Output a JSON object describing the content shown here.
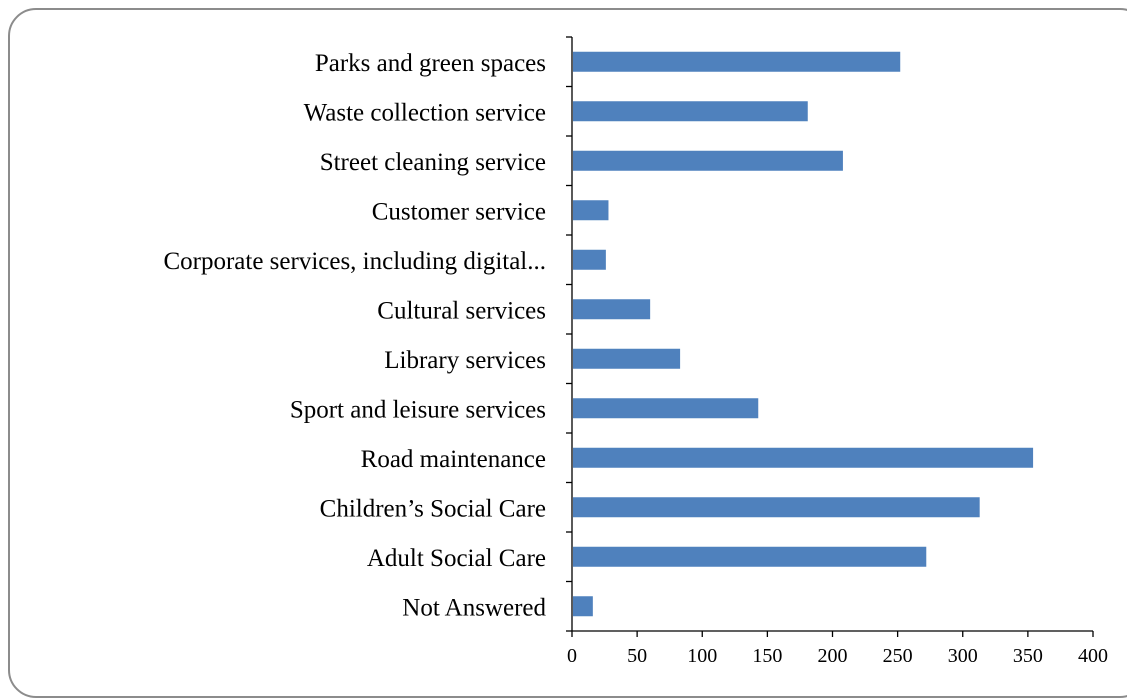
{
  "chart_data": {
    "type": "bar",
    "orientation": "horizontal",
    "categories": [
      "Parks and green spaces",
      "Waste collection service",
      "Street cleaning service",
      "Customer service",
      "Corporate services, including digital...",
      "Cultural services",
      "Library services",
      "Sport and leisure services",
      "Road maintenance",
      "Children’s Social Care",
      "Adult Social Care",
      "Not Answered"
    ],
    "values": [
      252,
      181,
      208,
      28,
      26,
      60,
      83,
      143,
      354,
      313,
      272,
      16
    ],
    "title": "",
    "xlabel": "",
    "ylabel": "",
    "xlim": [
      0,
      400
    ],
    "x_ticks": [
      0,
      50,
      100,
      150,
      200,
      250,
      300,
      350,
      400
    ],
    "bar_color": "#4f81bd",
    "grid": false,
    "legend": "none"
  }
}
